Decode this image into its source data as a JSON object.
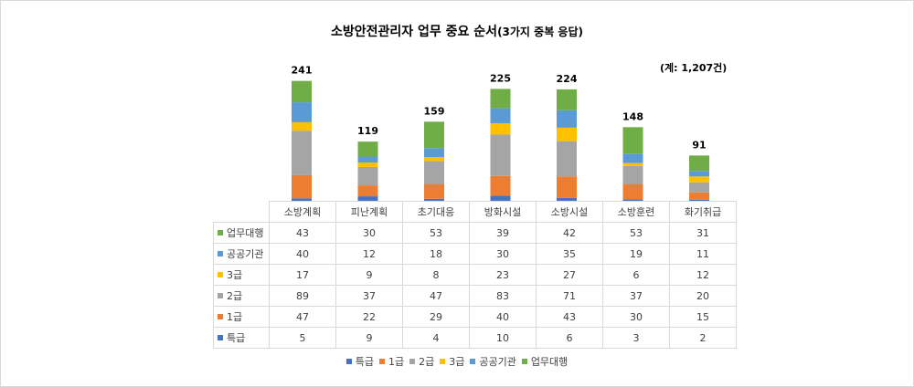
{
  "chart_title": "소방안전관리자 업무 중요 순서",
  "chart_subtitle": "(3가지 중복 응답)",
  "total_note": "(계: 1,207건)",
  "colors": {
    "특급": "#4472c4",
    "1급": "#ed7d31",
    "2급": "#a5a5a5",
    "3급": "#ffc000",
    "공공기관": "#5b9bd5",
    "업무대행": "#70ad47"
  },
  "chart_data": {
    "type": "bar",
    "stacked": true,
    "title": "소방안전관리자 업무 중요 순서(3가지 중복 응답)",
    "categories": [
      "소방계획",
      "피난계획",
      "초기대응",
      "방화시설",
      "소방시설",
      "소방훈련",
      "화기취급"
    ],
    "totals": [
      241,
      119,
      159,
      225,
      224,
      148,
      91
    ],
    "series": [
      {
        "name": "특급",
        "values": [
          5,
          9,
          4,
          10,
          6,
          3,
          2
        ]
      },
      {
        "name": "1급",
        "values": [
          47,
          22,
          29,
          40,
          43,
          30,
          15
        ]
      },
      {
        "name": "2급",
        "values": [
          89,
          37,
          47,
          83,
          71,
          37,
          20
        ]
      },
      {
        "name": "3급",
        "values": [
          17,
          9,
          8,
          23,
          27,
          6,
          12
        ]
      },
      {
        "name": "공공기관",
        "values": [
          40,
          12,
          18,
          30,
          35,
          19,
          11
        ]
      },
      {
        "name": "업무대행",
        "values": [
          43,
          30,
          53,
          39,
          42,
          53,
          31
        ]
      }
    ],
    "table_row_order": [
      "업무대행",
      "공공기관",
      "3급",
      "2급",
      "1급",
      "특급"
    ],
    "legend_order": [
      "특급",
      "1급",
      "2급",
      "3급",
      "공공기관",
      "업무대행"
    ],
    "legend_position": "bottom",
    "grid": false
  }
}
